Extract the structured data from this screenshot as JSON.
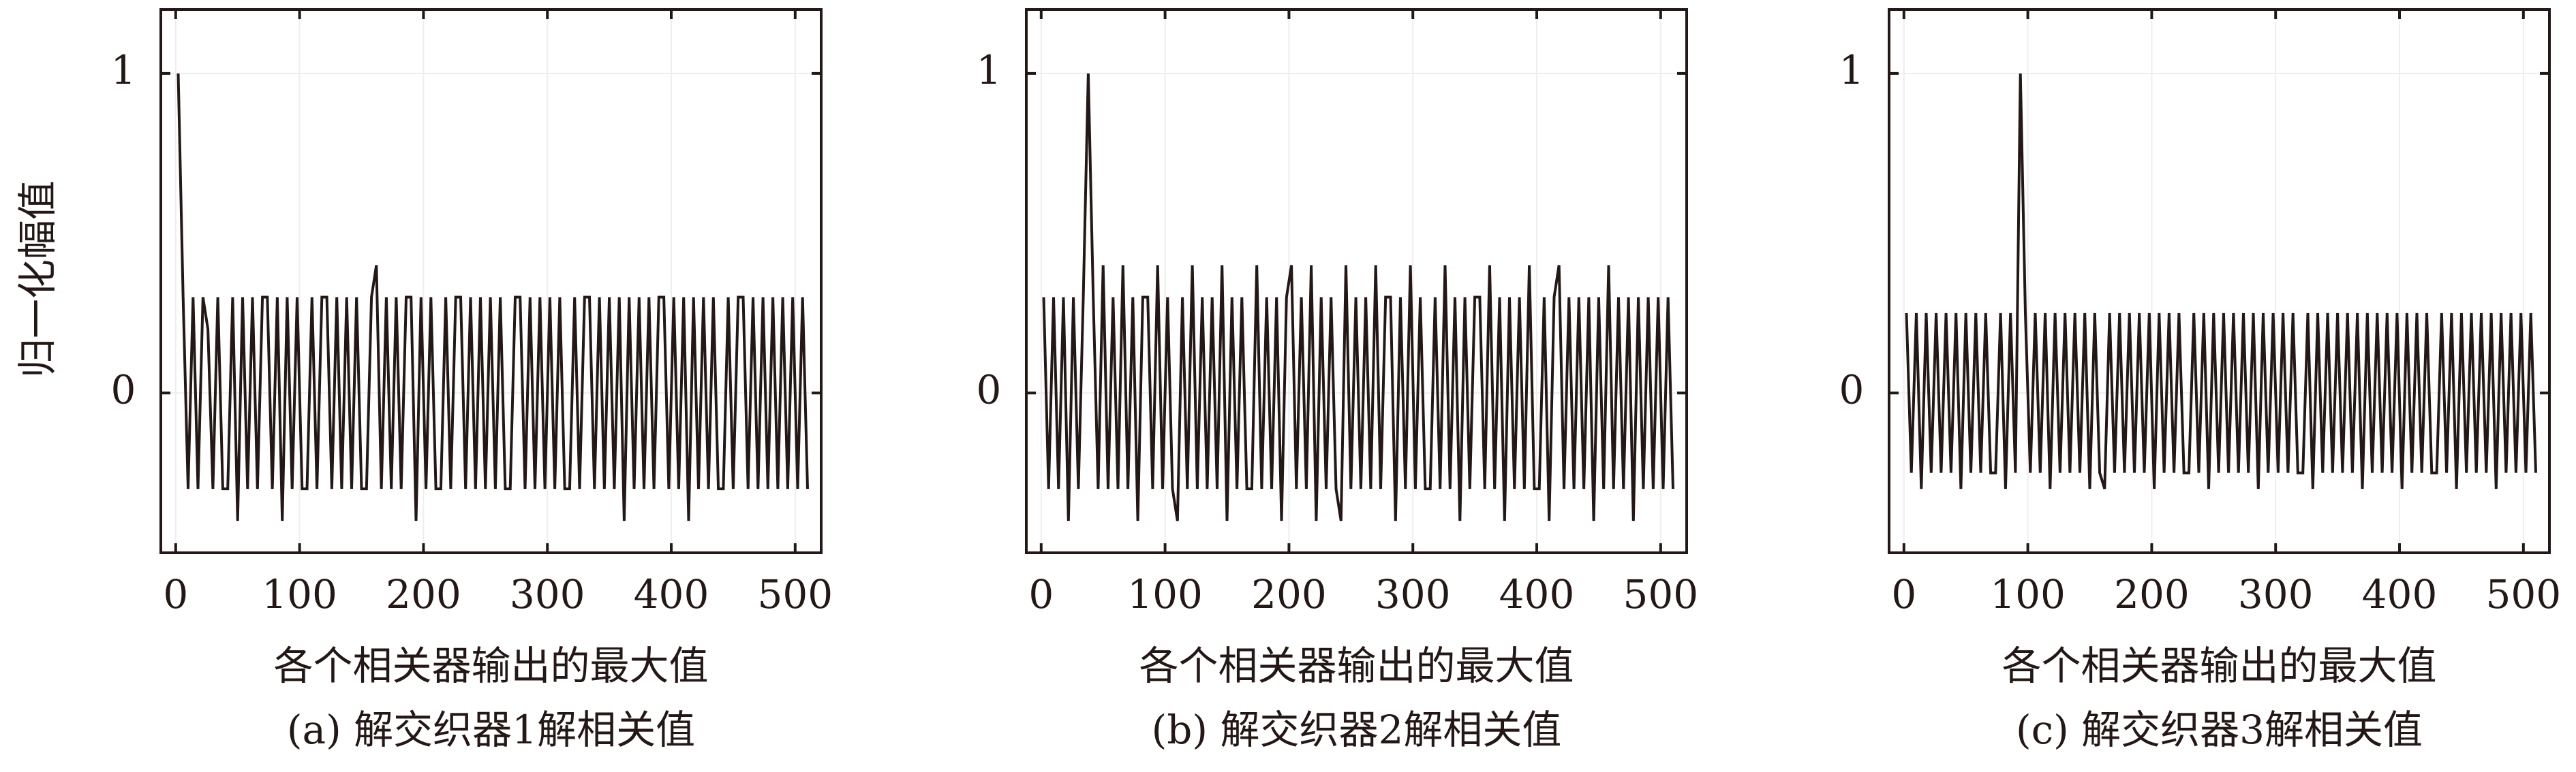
{
  "chart_data": [
    {
      "type": "line",
      "ylabel": "归一化幅值",
      "xlabel": "各个相关器输出的最大值",
      "subtitle": "(a) 解交织器1解相关值",
      "color": "#231815",
      "grid": true,
      "xlim": [
        -12,
        521
      ],
      "ylim": [
        -0.5,
        1.2
      ],
      "xticks": [
        0,
        100,
        200,
        300,
        400,
        500
      ],
      "yticks": [
        0,
        1
      ],
      "x": [
        2,
        6,
        10,
        14,
        18,
        22,
        26,
        30,
        34,
        38,
        42,
        46,
        50,
        54,
        58,
        62,
        66,
        70,
        74,
        78,
        82,
        86,
        90,
        94,
        98,
        102,
        106,
        110,
        114,
        118,
        122,
        126,
        130,
        134,
        138,
        142,
        146,
        150,
        154,
        158,
        162,
        166,
        170,
        174,
        178,
        182,
        186,
        190,
        194,
        198,
        202,
        206,
        210,
        214,
        218,
        222,
        226,
        230,
        234,
        238,
        242,
        246,
        250,
        254,
        258,
        262,
        266,
        270,
        274,
        278,
        282,
        286,
        290,
        294,
        298,
        302,
        306,
        310,
        314,
        318,
        322,
        326,
        330,
        334,
        338,
        342,
        346,
        350,
        354,
        358,
        362,
        366,
        370,
        374,
        378,
        382,
        386,
        390,
        394,
        398,
        402,
        406,
        410,
        414,
        418,
        422,
        426,
        430,
        434,
        438,
        442,
        446,
        450,
        454,
        458,
        462,
        466,
        470,
        474,
        478,
        482,
        486,
        490,
        494,
        498,
        502,
        506,
        510
      ],
      "values": [
        1,
        0.3,
        -0.3,
        0.3,
        -0.3,
        0.3,
        0.2,
        -0.3,
        0.3,
        -0.3,
        -0.3,
        0.3,
        -0.4,
        0.3,
        -0.3,
        0.3,
        -0.3,
        0.3,
        0.3,
        -0.3,
        0.3,
        -0.4,
        0.3,
        -0.3,
        0.3,
        -0.3,
        -0.3,
        0.3,
        -0.3,
        0.3,
        0.3,
        -0.3,
        0.3,
        -0.3,
        0.3,
        -0.3,
        0.3,
        -0.3,
        -0.3,
        0.3,
        0.4,
        -0.3,
        0.3,
        -0.3,
        0.3,
        -0.3,
        0.3,
        0.3,
        -0.4,
        0.3,
        -0.3,
        0.3,
        -0.3,
        -0.3,
        0.3,
        -0.3,
        0.3,
        0.3,
        -0.3,
        0.3,
        -0.3,
        0.3,
        -0.3,
        0.3,
        -0.3,
        0.3,
        -0.3,
        -0.3,
        0.3,
        0.3,
        -0.3,
        0.3,
        -0.3,
        0.3,
        -0.3,
        0.3,
        -0.3,
        0.3,
        -0.3,
        -0.3,
        0.3,
        -0.3,
        0.3,
        0.3,
        -0.3,
        0.3,
        -0.3,
        0.3,
        -0.3,
        0.3,
        -0.4,
        0.3,
        -0.3,
        0.3,
        -0.3,
        0.3,
        -0.3,
        0.3,
        0.3,
        -0.3,
        0.3,
        -0.3,
        0.3,
        -0.4,
        0.3,
        -0.3,
        0.3,
        -0.3,
        0.3,
        -0.3,
        -0.3,
        0.3,
        -0.3,
        0.3,
        0.3,
        -0.3,
        0.3,
        -0.3,
        0.3,
        -0.3,
        0.3,
        -0.3,
        0.3,
        -0.3,
        0.3,
        -0.3,
        0.3,
        -0.3
      ]
    },
    {
      "type": "line",
      "xlabel": "各个相关器输出的最大值",
      "subtitle": "(b) 解交织器2解相关值",
      "color": "#231815",
      "grid": true,
      "xlim": [
        -12,
        521
      ],
      "ylim": [
        -0.5,
        1.2
      ],
      "xticks": [
        0,
        100,
        200,
        300,
        400,
        500
      ],
      "yticks": [
        0,
        1
      ],
      "x": [
        2,
        6,
        10,
        14,
        18,
        22,
        26,
        30,
        34,
        38,
        42,
        46,
        50,
        54,
        58,
        62,
        66,
        70,
        74,
        78,
        82,
        86,
        90,
        94,
        98,
        102,
        106,
        110,
        114,
        118,
        122,
        126,
        130,
        134,
        138,
        142,
        146,
        150,
        154,
        158,
        162,
        166,
        170,
        174,
        178,
        182,
        186,
        190,
        194,
        198,
        202,
        206,
        210,
        214,
        218,
        222,
        226,
        230,
        234,
        238,
        242,
        246,
        250,
        254,
        258,
        262,
        266,
        270,
        274,
        278,
        282,
        286,
        290,
        294,
        298,
        302,
        306,
        310,
        314,
        318,
        322,
        326,
        330,
        334,
        338,
        342,
        346,
        350,
        354,
        358,
        362,
        366,
        370,
        374,
        378,
        382,
        386,
        390,
        394,
        398,
        402,
        406,
        410,
        414,
        418,
        422,
        426,
        430,
        434,
        438,
        442,
        446,
        450,
        454,
        458,
        462,
        466,
        470,
        474,
        478,
        482,
        486,
        490,
        494,
        498,
        502,
        506,
        510
      ],
      "values": [
        0.3,
        -0.3,
        0.3,
        -0.3,
        0.3,
        -0.4,
        0.3,
        -0.3,
        0.3,
        1,
        0.3,
        -0.3,
        0.4,
        -0.3,
        0.3,
        -0.3,
        0.4,
        -0.3,
        0.3,
        -0.4,
        0.3,
        0.3,
        -0.3,
        0.4,
        -0.3,
        0.3,
        -0.3,
        -0.4,
        0.3,
        -0.3,
        0.4,
        -0.3,
        0.3,
        -0.3,
        0.3,
        -0.3,
        0.4,
        -0.4,
        0.3,
        -0.3,
        0.3,
        -0.3,
        -0.3,
        0.4,
        -0.3,
        0.3,
        -0.3,
        0.3,
        -0.4,
        0.3,
        0.4,
        -0.3,
        0.3,
        -0.3,
        0.4,
        -0.4,
        0.3,
        -0.3,
        0.3,
        -0.3,
        -0.4,
        0.4,
        -0.3,
        0.3,
        -0.3,
        0.3,
        -0.3,
        0.4,
        -0.3,
        0.3,
        0.3,
        -0.4,
        0.3,
        -0.3,
        0.4,
        -0.3,
        0.3,
        -0.3,
        -0.3,
        0.3,
        -0.3,
        0.4,
        -0.3,
        0.3,
        -0.4,
        0.3,
        -0.3,
        0.3,
        0.3,
        -0.3,
        0.4,
        -0.3,
        0.3,
        -0.4,
        0.3,
        -0.3,
        0.3,
        -0.3,
        0.4,
        -0.3,
        -0.3,
        0.3,
        -0.4,
        0.3,
        0.4,
        -0.3,
        0.3,
        -0.3,
        0.3,
        -0.3,
        0.3,
        -0.4,
        0.3,
        -0.3,
        0.4,
        -0.3,
        0.3,
        -0.3,
        0.3,
        -0.4,
        0.3,
        -0.3,
        0.3,
        -0.3,
        0.3,
        -0.3,
        0.3,
        -0.3
      ]
    },
    {
      "type": "line",
      "xlabel": "各个相关器输出的最大值",
      "subtitle": "(c) 解交织器3解相关值",
      "color": "#231815",
      "grid": true,
      "xlim": [
        -12,
        521
      ],
      "ylim": [
        -0.5,
        1.2
      ],
      "xticks": [
        0,
        100,
        200,
        300,
        400,
        500
      ],
      "yticks": [
        0,
        1
      ],
      "x": [
        2,
        6,
        10,
        14,
        18,
        22,
        26,
        30,
        34,
        38,
        42,
        46,
        50,
        54,
        58,
        62,
        66,
        70,
        74,
        78,
        82,
        86,
        90,
        94,
        98,
        102,
        106,
        110,
        114,
        118,
        122,
        126,
        130,
        134,
        138,
        142,
        146,
        150,
        154,
        158,
        162,
        166,
        170,
        174,
        178,
        182,
        186,
        190,
        194,
        198,
        202,
        206,
        210,
        214,
        218,
        222,
        226,
        230,
        234,
        238,
        242,
        246,
        250,
        254,
        258,
        262,
        266,
        270,
        274,
        278,
        282,
        286,
        290,
        294,
        298,
        302,
        306,
        310,
        314,
        318,
        322,
        326,
        330,
        334,
        338,
        342,
        346,
        350,
        354,
        358,
        362,
        366,
        370,
        374,
        378,
        382,
        386,
        390,
        394,
        398,
        402,
        406,
        410,
        414,
        418,
        422,
        426,
        430,
        434,
        438,
        442,
        446,
        450,
        454,
        458,
        462,
        466,
        470,
        474,
        478,
        482,
        486,
        490,
        494,
        498,
        502,
        506,
        510
      ],
      "values": [
        0.25,
        -0.25,
        0.25,
        -0.3,
        0.25,
        -0.25,
        0.25,
        -0.25,
        0.25,
        -0.25,
        0.25,
        -0.3,
        0.25,
        -0.25,
        0.25,
        -0.25,
        0.25,
        -0.25,
        -0.25,
        0.25,
        -0.3,
        0.25,
        -0.25,
        1,
        0.25,
        -0.25,
        0.25,
        -0.25,
        0.25,
        -0.3,
        0.25,
        -0.25,
        0.25,
        -0.25,
        0.25,
        -0.25,
        0.25,
        -0.3,
        0.25,
        -0.25,
        -0.3,
        0.25,
        -0.25,
        0.25,
        -0.25,
        0.25,
        -0.25,
        0.25,
        -0.25,
        0.25,
        -0.3,
        0.25,
        -0.25,
        0.25,
        -0.25,
        0.25,
        -0.25,
        -0.25,
        0.25,
        -0.25,
        0.25,
        -0.3,
        0.25,
        -0.25,
        0.25,
        -0.25,
        0.25,
        -0.25,
        0.25,
        -0.25,
        0.25,
        -0.3,
        0.25,
        -0.25,
        0.25,
        -0.25,
        0.25,
        -0.25,
        0.25,
        -0.25,
        -0.25,
        0.25,
        -0.3,
        0.25,
        -0.25,
        0.25,
        -0.25,
        0.25,
        -0.25,
        0.25,
        -0.25,
        0.25,
        -0.3,
        0.25,
        -0.25,
        0.25,
        -0.25,
        0.25,
        -0.25,
        0.25,
        -0.3,
        0.25,
        -0.25,
        0.25,
        -0.25,
        0.25,
        -0.25,
        -0.25,
        0.25,
        -0.25,
        0.25,
        -0.3,
        0.25,
        -0.25,
        0.25,
        -0.25,
        0.25,
        -0.25,
        0.25,
        -0.3,
        0.25,
        -0.25,
        0.25,
        -0.25,
        0.25,
        -0.25,
        0.25,
        -0.25
      ]
    }
  ]
}
